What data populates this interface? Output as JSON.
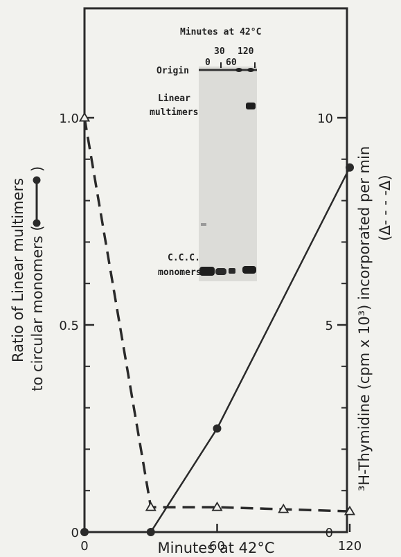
{
  "chart_data": {
    "type": "line",
    "xlabel": "Minutes at 42°C",
    "ylabel_left_line1": "Ratio of Linear multimers",
    "ylabel_left_line2": "to circular monomers (",
    "ylabel_right_line1": "³H-Thymidine (cpm x 10³) incorporated per min",
    "ylabel_right_line2": "(Δ- - - -Δ)",
    "x_ticks": [
      0,
      60,
      120
    ],
    "x_tick_labels": [
      "0",
      "60",
      "120"
    ],
    "y_left_ticks": [
      0,
      0.5,
      1.0
    ],
    "y_left_tick_labels": [
      "0",
      "0.5",
      "1.0"
    ],
    "y_right_ticks": [
      0,
      5,
      10
    ],
    "y_right_tick_labels": [
      "0",
      "5",
      "10"
    ],
    "xlim": [
      0,
      120
    ],
    "ylim_left": [
      0,
      1.0
    ],
    "ylim_right": [
      0,
      10
    ],
    "series": [
      {
        "axis": "left",
        "style": "solid",
        "marker": "filled-circle",
        "x": [
          0,
          30,
          60,
          120
        ],
        "y": [
          0,
          0,
          0.25,
          0.88
        ]
      },
      {
        "axis": "right",
        "style": "dashed",
        "marker": "open-triangle",
        "x": [
          0,
          30,
          60,
          90,
          120
        ],
        "y": [
          10,
          0.6,
          0.6,
          0.55,
          0.5
        ]
      }
    ],
    "inset_gel": {
      "title": "Minutes at 42°C",
      "lane_labels": [
        "0",
        "30",
        "60",
        "120"
      ],
      "band_labels": [
        "Origin",
        "Linear multimers",
        "C.C.C. monomers"
      ],
      "label_origin": "Origin",
      "label_linear_1": "Linear",
      "label_linear_2": "multimers",
      "label_ccc_1": "C.C.C.",
      "label_ccc_2": "monomers"
    },
    "grid": false,
    "colors": {
      "ink": "#2a2a2a",
      "background": "#f2f2ee",
      "gel": "#dcdcd8"
    }
  }
}
